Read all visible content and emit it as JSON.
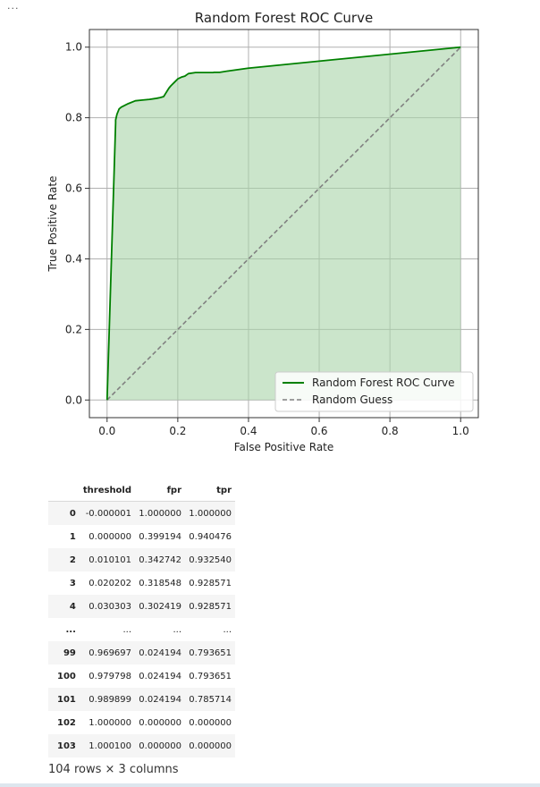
{
  "cell": {
    "prompt_marker": "..."
  },
  "chart_data": {
    "type": "line",
    "title": "Random Forest ROC Curve",
    "xlabel": "False Positive Rate",
    "ylabel": "True Positive Rate",
    "xlim": [
      -0.05,
      1.05
    ],
    "ylim": [
      -0.05,
      1.05
    ],
    "xticks": [
      "0.0",
      "0.2",
      "0.4",
      "0.6",
      "0.8",
      "1.0"
    ],
    "yticks": [
      "0.0",
      "0.2",
      "0.4",
      "0.6",
      "0.8",
      "1.0"
    ],
    "grid": true,
    "legend_position": "lower right",
    "series": [
      {
        "name": "Random Forest ROC Curve",
        "color": "#008000",
        "fill": "#a9d4a9",
        "style": "solid",
        "x": [
          0.0,
          0.0,
          0.024194,
          0.024194,
          0.028,
          0.034,
          0.04,
          0.05,
          0.06,
          0.08,
          0.1,
          0.12,
          0.14,
          0.15,
          0.16,
          0.165,
          0.17,
          0.175,
          0.18,
          0.185,
          0.19,
          0.2,
          0.21,
          0.22,
          0.23,
          0.25,
          0.3,
          0.302419,
          0.318548,
          0.342742,
          0.399194,
          1.0
        ],
        "y": [
          0.0,
          0.0,
          0.785714,
          0.793651,
          0.81,
          0.825,
          0.83,
          0.835,
          0.84,
          0.848,
          0.85,
          0.852,
          0.855,
          0.857,
          0.86,
          0.868,
          0.876,
          0.884,
          0.89,
          0.895,
          0.9,
          0.91,
          0.915,
          0.918,
          0.925,
          0.928,
          0.928,
          0.928571,
          0.928571,
          0.93254,
          0.940476,
          1.0
        ]
      },
      {
        "name": "Random Guess",
        "color": "#808080",
        "style": "dashed",
        "x": [
          0,
          1
        ],
        "y": [
          0,
          1
        ]
      }
    ]
  },
  "table": {
    "columns": [
      "threshold",
      "fpr",
      "tpr"
    ],
    "rows": [
      [
        "0",
        "-0.000001",
        "1.000000",
        "1.000000"
      ],
      [
        "1",
        "0.000000",
        "0.399194",
        "0.940476"
      ],
      [
        "2",
        "0.010101",
        "0.342742",
        "0.932540"
      ],
      [
        "3",
        "0.020202",
        "0.318548",
        "0.928571"
      ],
      [
        "4",
        "0.030303",
        "0.302419",
        "0.928571"
      ],
      [
        "...",
        "...",
        "...",
        "..."
      ],
      [
        "99",
        "0.969697",
        "0.024194",
        "0.793651"
      ],
      [
        "100",
        "0.979798",
        "0.024194",
        "0.793651"
      ],
      [
        "101",
        "0.989899",
        "0.024194",
        "0.785714"
      ],
      [
        "102",
        "1.000000",
        "0.000000",
        "0.000000"
      ],
      [
        "103",
        "1.000100",
        "0.000000",
        "0.000000"
      ]
    ],
    "shape": "104 rows × 3 columns"
  }
}
